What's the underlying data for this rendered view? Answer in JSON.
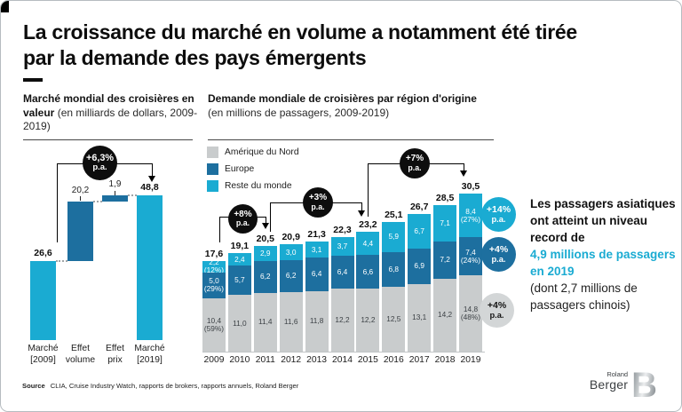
{
  "title_lines": [
    "La croissance du marché en volume a notamment été tirée",
    "par la demande des pays émergents"
  ],
  "left_chart_heading": {
    "bold": "Marché mondial des croisières en valeur",
    "rest": " (en milliards de dollars, 2009-2019)"
  },
  "right_chart_heading": {
    "bold": "Demande mondiale de croisières par région d'origine",
    "rest": "(en millions de passagers, 2009-2019)"
  },
  "chart_data": [
    {
      "type": "bar",
      "subtype": "waterfall",
      "title": "Marché mondial des croisières en valeur",
      "unit": "milliards de dollars",
      "categories": [
        [
          "Marché",
          "[2009]"
        ],
        [
          "Effet",
          "volume"
        ],
        [
          "Effet",
          "prix"
        ],
        [
          "Marché",
          "[2019]"
        ]
      ],
      "values": [
        26.6,
        20.2,
        1.9,
        48.8
      ],
      "bases": [
        0,
        26.6,
        46.8,
        0
      ],
      "labels": [
        "26,6",
        "20,2",
        "1,9",
        "48,8"
      ],
      "colors": [
        "#1aabd2",
        "#1d6f9f",
        "#1d6f9f",
        "#1aabd2"
      ],
      "annotation": {
        "text": "+6,3%",
        "sub": "p.a."
      }
    },
    {
      "type": "bar",
      "subtype": "stacked",
      "title": "Demande mondiale de croisières par région d'origine",
      "unit": "millions de passagers",
      "categories": [
        "2009",
        "2010",
        "2011",
        "2012",
        "2013",
        "2014",
        "2015",
        "2016",
        "2017",
        "2018",
        "2019"
      ],
      "series": [
        {
          "name": "Amérique du Nord",
          "color": "#c9cccd",
          "label_color": "#3d4246",
          "values": [
            10.4,
            11.0,
            11.4,
            11.6,
            11.8,
            12.2,
            12.2,
            12.5,
            13.1,
            14.2,
            14.8
          ],
          "labels": [
            "10,4",
            "11,0",
            "11,4",
            "11,6",
            "11,8",
            "12,2",
            "12,2",
            "12,5",
            "13,1",
            "14,2",
            "14,8"
          ],
          "pct_labels": {
            "0": "(59%)",
            "10": "(48%)"
          }
        },
        {
          "name": "Europe",
          "color": "#1d6f9f",
          "label_color": "#ffffff",
          "values": [
            5.0,
            5.7,
            6.2,
            6.2,
            6.4,
            6.4,
            6.6,
            6.8,
            6.9,
            7.2,
            7.4
          ],
          "labels": [
            "5,0",
            "5,7",
            "6,2",
            "6,2",
            "6,4",
            "6,4",
            "6,6",
            "6,8",
            "6,9",
            "7,2",
            "7,4"
          ],
          "pct_labels": {
            "0": "(29%)",
            "10": "(24%)"
          }
        },
        {
          "name": "Reste du monde",
          "color": "#1aabd2",
          "label_color": "#ffffff",
          "values": [
            2.2,
            2.4,
            2.9,
            3.0,
            3.1,
            3.7,
            4.4,
            5.9,
            6.7,
            7.1,
            8.4
          ],
          "labels": [
            "2,2",
            "2,4",
            "2,9",
            "3,0",
            "3,1",
            "3,7",
            "4,4",
            "5,9",
            "6,7",
            "7,1",
            "8,4"
          ],
          "pct_labels": {
            "0": "(12%)",
            "10": "(27%)"
          }
        }
      ],
      "totals": [
        "17,6",
        "19,1",
        "20,5",
        "20,9",
        "21,3",
        "22,3",
        "23,2",
        "25,1",
        "26,7",
        "28,5",
        "30,5"
      ],
      "annotations": [
        {
          "text": "+8%",
          "sub": "p.a.",
          "span": "2009-2011"
        },
        {
          "text": "+3%",
          "sub": "p.a.",
          "span": "2011-2015"
        },
        {
          "text": "+7%",
          "sub": "p.a.",
          "span": "2015-2019"
        }
      ]
    }
  ],
  "badges": [
    {
      "text": "+14%",
      "sub": "p.a.",
      "color": "#1aabd2",
      "text_color": "#ffffff"
    },
    {
      "text": "+4%",
      "sub": "p.a.",
      "color": "#1d6f9f",
      "text_color": "#ffffff"
    },
    {
      "text": "+4%",
      "sub": "p.a.",
      "color": "#d3d6d7",
      "text_color": "#141414"
    }
  ],
  "callout": {
    "lines": [
      {
        "text": "Les passagers asiatiques ont atteint un niveau record de",
        "style": "bold"
      },
      {
        "text": "4,9 millions de passagers en 2019",
        "style": "cyan"
      },
      {
        "text": "(dont 2,7 millions de passagers chinois)",
        "style": "normal"
      }
    ]
  },
  "source": {
    "label": "Source",
    "text": "CLIA, Cruise Industry Watch, rapports de brokers, rapports annuels, Roland Berger"
  },
  "logo": {
    "top": "Roland",
    "bottom": "Berger",
    "mark": "B"
  },
  "colors": {
    "cyan": "#1aabd2",
    "dark_blue": "#1d6f9f",
    "light_gray": "#c9cccd",
    "annotation_black": "#0d0d0d"
  }
}
